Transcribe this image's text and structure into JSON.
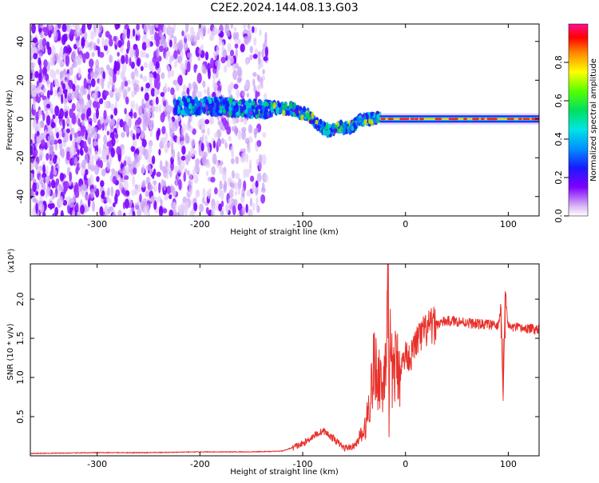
{
  "title": "C2E2.2024.144.08.13.G03",
  "chart_data": [
    {
      "type": "heatmap",
      "name": "spectrogram",
      "xlabel": "Height of straight line (km)",
      "ylabel": "Frequency (Hz)",
      "xlim": [
        -365,
        130
      ],
      "ylim": [
        -50,
        49
      ],
      "xticks": [
        -300,
        -200,
        -100,
        0,
        100
      ],
      "xtick_labels": [
        "-300",
        "-200",
        "-100",
        "0",
        "100"
      ],
      "yticks": [
        -40,
        -20,
        0,
        20,
        40
      ],
      "ytick_labels": [
        "-40",
        "-20",
        "0",
        "20",
        "40"
      ],
      "colorbar": {
        "label": "Normalized spectral amplitude",
        "range": [
          0,
          1
        ],
        "ticks": [
          0.0,
          0.2,
          0.4,
          0.6,
          0.8
        ],
        "tick_labels": [
          "0.0",
          "0.2",
          "0.4",
          "0.6",
          "0.8"
        ],
        "colormap": "rainbow (white-purple-blue-cyan-green-yellow-red-magenta)"
      },
      "features": [
        {
          "x_range": [
            -365,
            -135
          ],
          "frequency_range": [
            -50,
            49
          ],
          "description": "broadband noise, purple speckle"
        },
        {
          "x_range": [
            -225,
            -130
          ],
          "frequency_center": 7,
          "description": "blue/green signal band"
        },
        {
          "x": [
            -130,
            -110,
            -95,
            -85,
            -75,
            -65,
            -55,
            -45,
            -35,
            -25,
            0,
            130
          ],
          "frequency": [
            6,
            5,
            2,
            -3,
            -6,
            -4,
            -5,
            -1,
            0,
            1,
            0,
            0
          ],
          "description": "signal track converging to 0 Hz"
        },
        {
          "x_range": [
            -25,
            130
          ],
          "frequency_center": 0,
          "description": "strong narrow red line at 0 Hz"
        }
      ]
    },
    {
      "type": "line",
      "name": "snr",
      "xlabel": "Height of straight line (km)",
      "ylabel": "SNR (10 * v/v)",
      "y_multiplier": "(x10⁴)",
      "xlim": [
        -365,
        130
      ],
      "ylim": [
        0,
        2.45
      ],
      "xticks": [
        -300,
        -200,
        -100,
        0,
        100
      ],
      "xtick_labels": [
        "-300",
        "-200",
        "-100",
        "0",
        "100"
      ],
      "yticks": [
        0.5,
        1.0,
        1.5,
        2.0
      ],
      "ytick_labels": [
        "0.5",
        "1.0",
        "1.5",
        "2.0"
      ],
      "color": "#e8302a",
      "x": [
        -365,
        -300,
        -250,
        -200,
        -150,
        -120,
        -100,
        -90,
        -80,
        -70,
        -60,
        -50,
        -40,
        -35,
        -30,
        -28,
        -25,
        -22,
        -20,
        -18,
        -17,
        -16,
        -15,
        -13,
        -10,
        -5,
        0,
        5,
        10,
        20,
        30,
        40,
        50,
        60,
        70,
        80,
        90,
        93,
        95,
        97,
        100,
        110,
        120,
        130
      ],
      "y": [
        0.03,
        0.04,
        0.04,
        0.05,
        0.05,
        0.06,
        0.15,
        0.25,
        0.32,
        0.22,
        0.1,
        0.12,
        0.3,
        0.7,
        1.2,
        1.0,
        1.05,
        0.8,
        1.3,
        1.5,
        2.45,
        0.2,
        1.4,
        1.05,
        1.15,
        1.1,
        1.3,
        1.25,
        1.45,
        1.6,
        1.68,
        1.72,
        1.72,
        1.7,
        1.68,
        1.68,
        1.65,
        1.9,
        0.7,
        2.1,
        1.65,
        1.63,
        1.62,
        1.62
      ]
    }
  ]
}
